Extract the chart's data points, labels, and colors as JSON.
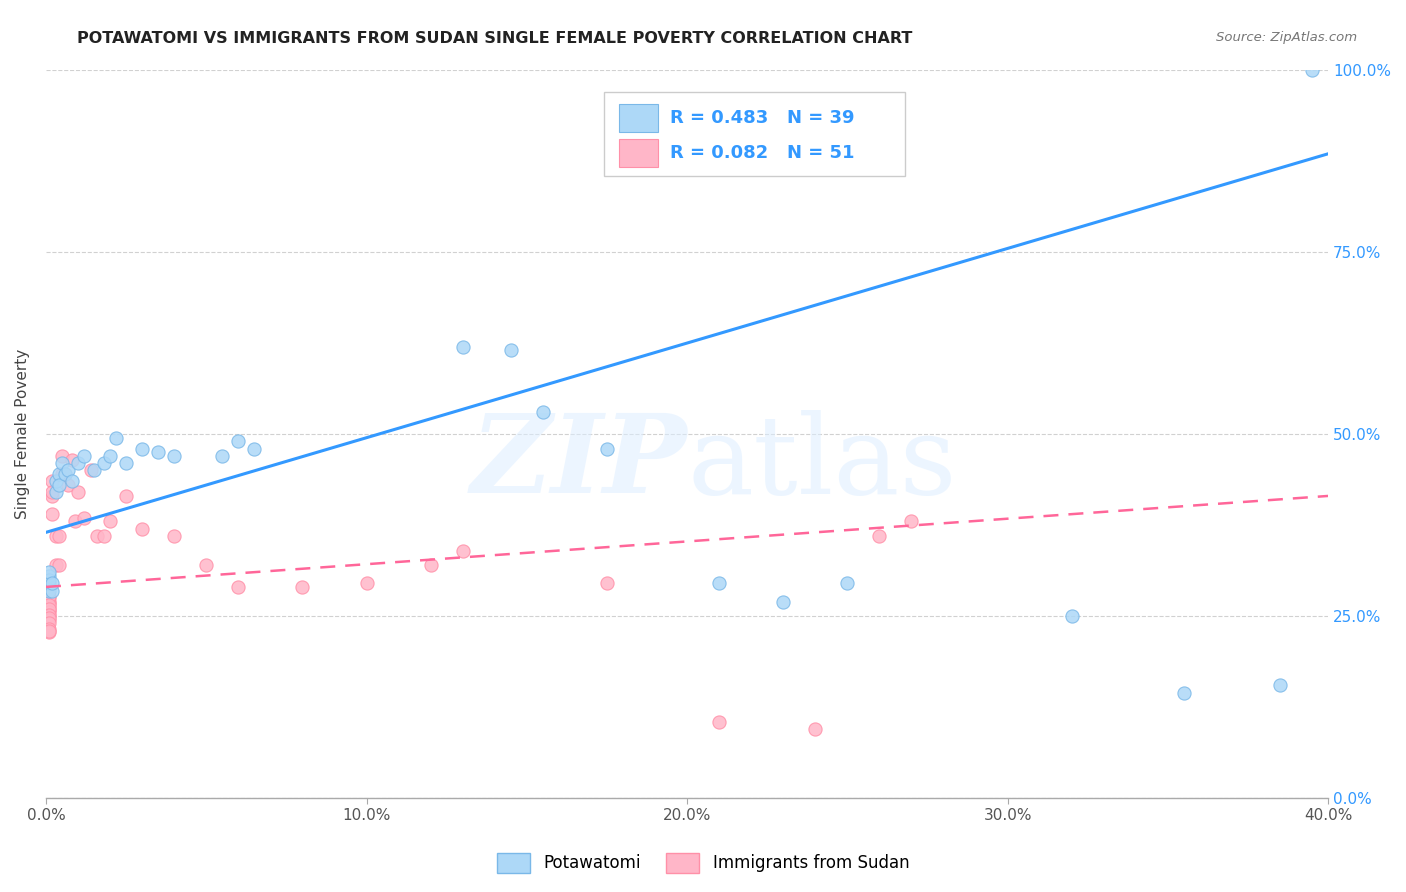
{
  "title": "POTAWATOMI VS IMMIGRANTS FROM SUDAN SINGLE FEMALE POVERTY CORRELATION CHART",
  "source": "Source: ZipAtlas.com",
  "ylabel": "Single Female Poverty",
  "legend_label1": "Potawatomi",
  "legend_label2": "Immigrants from Sudan",
  "R1": 0.483,
  "N1": 39,
  "R2": 0.082,
  "N2": 51,
  "blue_color": "#add8f7",
  "pink_color": "#ffb6c8",
  "blue_edge": "#7ab8e8",
  "pink_edge": "#ff90a8",
  "line_blue": "#3399ff",
  "line_pink": "#ff6699",
  "blue_scatter_x": [
    0.001,
    0.001,
    0.001,
    0.001,
    0.001,
    0.002,
    0.002,
    0.003,
    0.003,
    0.004,
    0.004,
    0.005,
    0.006,
    0.007,
    0.008,
    0.01,
    0.012,
    0.015,
    0.018,
    0.02,
    0.022,
    0.025,
    0.03,
    0.035,
    0.04,
    0.055,
    0.06,
    0.065,
    0.13,
    0.145,
    0.155,
    0.175,
    0.21,
    0.23,
    0.25,
    0.32,
    0.355,
    0.385,
    0.395
  ],
  "blue_scatter_y": [
    0.285,
    0.295,
    0.305,
    0.3,
    0.31,
    0.285,
    0.295,
    0.42,
    0.435,
    0.445,
    0.43,
    0.46,
    0.445,
    0.45,
    0.435,
    0.46,
    0.47,
    0.45,
    0.46,
    0.47,
    0.495,
    0.46,
    0.48,
    0.475,
    0.47,
    0.47,
    0.49,
    0.48,
    0.62,
    0.615,
    0.53,
    0.48,
    0.295,
    0.27,
    0.295,
    0.25,
    0.145,
    0.155,
    1.0
  ],
  "pink_scatter_x": [
    0.001,
    0.001,
    0.001,
    0.001,
    0.001,
    0.001,
    0.001,
    0.001,
    0.001,
    0.001,
    0.001,
    0.001,
    0.001,
    0.001,
    0.001,
    0.001,
    0.001,
    0.002,
    0.002,
    0.002,
    0.002,
    0.003,
    0.003,
    0.004,
    0.004,
    0.005,
    0.005,
    0.006,
    0.007,
    0.008,
    0.009,
    0.01,
    0.012,
    0.014,
    0.016,
    0.018,
    0.02,
    0.025,
    0.03,
    0.04,
    0.05,
    0.06,
    0.08,
    0.1,
    0.12,
    0.13,
    0.175,
    0.21,
    0.24,
    0.26,
    0.27
  ],
  "pink_scatter_y": [
    0.268,
    0.27,
    0.275,
    0.278,
    0.258,
    0.262,
    0.265,
    0.255,
    0.26,
    0.25,
    0.252,
    0.245,
    0.248,
    0.24,
    0.232,
    0.228,
    0.23,
    0.435,
    0.415,
    0.42,
    0.39,
    0.36,
    0.32,
    0.36,
    0.32,
    0.47,
    0.445,
    0.445,
    0.43,
    0.465,
    0.38,
    0.42,
    0.385,
    0.45,
    0.36,
    0.36,
    0.38,
    0.415,
    0.37,
    0.36,
    0.32,
    0.29,
    0.29,
    0.295,
    0.32,
    0.34,
    0.295,
    0.105,
    0.095,
    0.36,
    0.38
  ],
  "xmin": 0.0,
  "xmax": 0.4,
  "ymin": 0.0,
  "ymax": 1.0,
  "blue_line_x0": 0.0,
  "blue_line_y0": 0.365,
  "blue_line_x1": 0.4,
  "blue_line_y1": 0.885,
  "pink_line_x0": 0.0,
  "pink_line_y0": 0.29,
  "pink_line_x1": 0.4,
  "pink_line_y1": 0.415,
  "ytick_vals": [
    0.0,
    0.25,
    0.5,
    0.75,
    1.0
  ],
  "ytick_labels": [
    "0.0%",
    "25.0%",
    "50.0%",
    "75.0%",
    "100.0%"
  ],
  "xtick_vals": [
    0.0,
    0.1,
    0.2,
    0.3,
    0.4
  ],
  "xtick_labels": [
    "0.0%",
    "10.0%",
    "20.0%",
    "30.0%",
    "40.0%"
  ]
}
